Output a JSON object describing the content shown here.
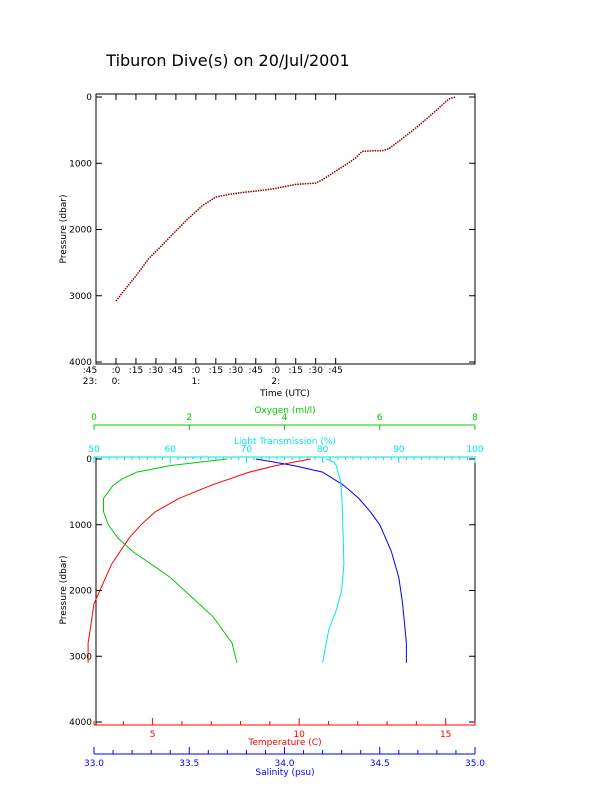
{
  "title": "Tiburon Dive(s) on 20/Jul/2001",
  "colors": {
    "axis": "#000000",
    "dive_line": "#8b0000",
    "temperature": "#ff0000",
    "salinity": "#0000ff",
    "oxygen": "#00cc00",
    "transmission": "#00e5ee"
  },
  "chart_data": [
    {
      "type": "line",
      "title": "Tiburon Dive(s) on 20/Jul/2001",
      "xlabel": "Time (UTC)",
      "ylabel": "Pressure (dbar)",
      "ylim": [
        4000,
        0
      ],
      "x_tick_labels_top": [
        ":45",
        ":0",
        ":15",
        ":30",
        ":45",
        ":0",
        ":15",
        ":30",
        ":45",
        ":0",
        ":15",
        ":30",
        ":45"
      ],
      "x_tick_labels_bottom": [
        "23:",
        "0:",
        "1:",
        "2:"
      ],
      "y_ticks": [
        0,
        1000,
        2000,
        3000,
        4000
      ],
      "series": [
        {
          "x_minutes_from_2345": [
            15,
            20,
            30,
            40,
            50,
            60,
            70,
            80,
            90,
            95,
            100,
            110,
            120,
            135,
            150,
            165,
            170,
            180,
            190,
            195,
            200,
            210,
            215,
            220,
            230,
            240,
            250,
            260,
            265,
            270
          ],
          "y": [
            3080,
            2950,
            2700,
            2430,
            2230,
            2020,
            1820,
            1640,
            1510,
            1490,
            1470,
            1440,
            1420,
            1380,
            1320,
            1300,
            1250,
            1120,
            990,
            920,
            820,
            810,
            810,
            780,
            630,
            470,
            300,
            120,
            30,
            0
          ]
        }
      ]
    },
    {
      "type": "line",
      "ylabel": "Pressure (dbar)",
      "ylim": [
        4000,
        0
      ],
      "y_ticks": [
        0,
        1000,
        2000,
        3000,
        4000
      ],
      "axes": {
        "oxygen": {
          "label": "Oxygen (ml/l)",
          "range": [
            0,
            8
          ],
          "ticks": [
            0,
            2,
            4,
            6,
            8
          ]
        },
        "transmission": {
          "label": "Light Transmission (%)",
          "range": [
            50,
            100
          ],
          "ticks": [
            50,
            60,
            70,
            80,
            90,
            100
          ]
        },
        "temperature": {
          "label": "Temperature (C)",
          "range": [
            3,
            16
          ],
          "ticks": [
            5,
            10,
            15
          ]
        },
        "salinity": {
          "label": "Salinity (psu)",
          "range": [
            33.0,
            35.0
          ],
          "ticks": [
            "33.0",
            "33.5",
            "34.0",
            "34.5",
            "35.0"
          ]
        }
      },
      "series": [
        {
          "name": "Temperature (C)",
          "axis": "temperature",
          "depth": [
            0,
            50,
            100,
            200,
            400,
            600,
            800,
            1000,
            1200,
            1400,
            1600,
            1800,
            2000,
            2200,
            2500,
            2800,
            3100
          ],
          "values": [
            10.4,
            9.8,
            9.2,
            8.3,
            7.0,
            5.9,
            5.1,
            4.6,
            4.2,
            3.9,
            3.6,
            3.4,
            3.2,
            3.0,
            2.9,
            2.8,
            2.8
          ]
        },
        {
          "name": "Salinity (psu)",
          "axis": "salinity",
          "depth": [
            0,
            50,
            100,
            200,
            400,
            600,
            800,
            1000,
            1200,
            1400,
            1600,
            1800,
            2000,
            2200,
            2500,
            2800,
            3100
          ],
          "values": [
            33.85,
            33.95,
            34.05,
            34.2,
            34.31,
            34.39,
            34.45,
            34.5,
            34.53,
            34.56,
            34.58,
            34.6,
            34.61,
            34.62,
            34.63,
            34.64,
            34.64
          ]
        },
        {
          "name": "Oxygen (ml/l)",
          "axis": "oxygen",
          "depth": [
            0,
            50,
            100,
            200,
            300,
            400,
            500,
            600,
            800,
            1000,
            1200,
            1400,
            1600,
            1800,
            2000,
            2200,
            2400,
            2600,
            2800,
            3100
          ],
          "values": [
            2.8,
            2.2,
            1.6,
            0.9,
            0.6,
            0.4,
            0.3,
            0.2,
            0.2,
            0.3,
            0.5,
            0.8,
            1.2,
            1.6,
            1.9,
            2.2,
            2.5,
            2.7,
            2.9,
            3.0
          ]
        },
        {
          "name": "Light Transmission (%)",
          "axis": "transmission",
          "depth": [
            0,
            50,
            100,
            200,
            300,
            500,
            800,
            1200,
            1600,
            2000,
            2300,
            2600,
            3100
          ],
          "values": [
            80.5,
            81.5,
            81.8,
            82.0,
            82.3,
            82.5,
            82.6,
            82.7,
            82.8,
            82.5,
            81.8,
            80.8,
            80.0
          ]
        }
      ]
    }
  ]
}
